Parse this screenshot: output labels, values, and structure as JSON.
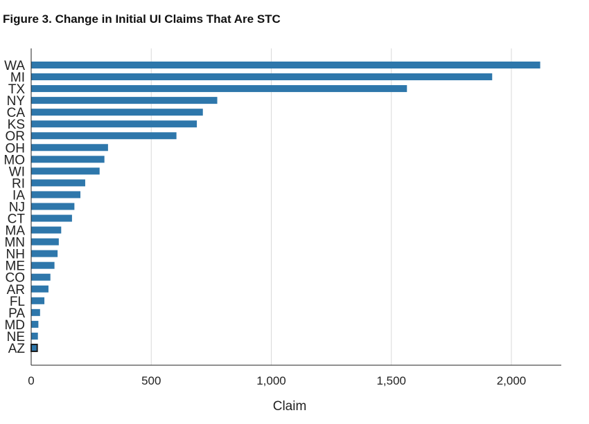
{
  "figure": {
    "title": "Figure 3.  Change in Initial UI Claims That Are STC"
  },
  "colors": {
    "bar": "#2e77ab",
    "grid": "#d9d9d9",
    "axis": "#222222",
    "highlight_border": "#1a1a1a"
  },
  "chart_data": {
    "type": "bar",
    "orientation": "horizontal",
    "title": "Figure 3.  Change in Initial UI Claims That Are STC",
    "xlabel": "Claim",
    "ylabel": "",
    "xlim": [
      0,
      2200
    ],
    "xticks": [
      0,
      500,
      1000,
      1500,
      2000
    ],
    "xtick_labels": [
      "0",
      "500",
      "1,000",
      "1,500",
      "2,000"
    ],
    "grid": "vertical",
    "legend": "none",
    "categories": [
      "WA",
      "MI",
      "TX",
      "NY",
      "CA",
      "KS",
      "OR",
      "OH",
      "MO",
      "WI",
      "RI",
      "IA",
      "NJ",
      "CT",
      "MA",
      "MN",
      "NH",
      "ME",
      "CO",
      "AR",
      "FL",
      "PA",
      "MD",
      "NE",
      "AZ"
    ],
    "values": [
      2120,
      1920,
      1565,
      775,
      715,
      690,
      605,
      320,
      305,
      285,
      225,
      205,
      180,
      170,
      125,
      115,
      110,
      97,
      80,
      72,
      55,
      37,
      30,
      28,
      25
    ],
    "highlighted_category": "AZ"
  }
}
